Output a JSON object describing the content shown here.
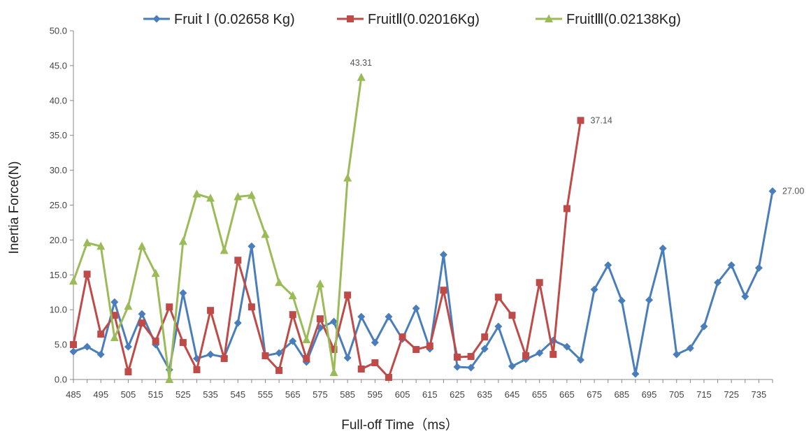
{
  "chart_data": {
    "type": "line",
    "xlabel": "Full-off Time（ms）",
    "ylabel": "Inertia Force(N)",
    "xlim": [
      485,
      740
    ],
    "ylim": [
      0,
      50
    ],
    "grid": false,
    "legend_position": "top",
    "y_ticks": [
      "0.0",
      "5.0",
      "10.0",
      "15.0",
      "20.0",
      "25.0",
      "30.0",
      "35.0",
      "40.0",
      "45.0",
      "50.0"
    ],
    "x_ticks": [
      "485",
      "495",
      "505",
      "515",
      "525",
      "535",
      "545",
      "555",
      "565",
      "575",
      "585",
      "595",
      "605",
      "615",
      "625",
      "635",
      "645",
      "655",
      "665",
      "675",
      "685",
      "695",
      "705",
      "715",
      "725",
      "735"
    ],
    "series": [
      {
        "name": "Fruit Ⅰ (0.02658 Kg)",
        "color": "#4A7EBB",
        "marker": "diamond",
        "x": [
          485,
          490,
          495,
          500,
          505,
          510,
          515,
          520,
          525,
          530,
          535,
          540,
          545,
          550,
          555,
          560,
          565,
          570,
          575,
          580,
          585,
          590,
          595,
          600,
          605,
          610,
          615,
          620,
          625,
          630,
          635,
          640,
          645,
          650,
          655,
          660,
          665,
          670,
          675,
          680,
          685,
          690,
          695,
          700,
          705,
          710,
          715,
          720,
          725,
          730,
          735,
          740
        ],
        "values": [
          4.0,
          4.7,
          3.6,
          11.1,
          4.7,
          9.4,
          5.0,
          1.4,
          12.4,
          3.0,
          3.6,
          3.2,
          8.1,
          19.1,
          3.4,
          3.8,
          5.5,
          2.5,
          7.4,
          8.3,
          3.1,
          9.0,
          5.3,
          9.0,
          5.8,
          10.2,
          4.4,
          17.9,
          1.8,
          1.7,
          4.4,
          7.6,
          1.9,
          2.9,
          3.8,
          5.6,
          4.7,
          2.8,
          12.9,
          16.4,
          11.3,
          0.8,
          11.4,
          18.8,
          3.6,
          4.5,
          7.6,
          13.9,
          16.4,
          11.9,
          16.0,
          27.0
        ],
        "end_label": "27.00"
      },
      {
        "name": "FruitⅡ(0.02016Kg)",
        "color": "#BE4B48",
        "marker": "square",
        "x": [
          485,
          490,
          495,
          500,
          505,
          510,
          515,
          520,
          525,
          530,
          535,
          540,
          545,
          550,
          555,
          560,
          565,
          570,
          575,
          580,
          585,
          590,
          595,
          600,
          605,
          610,
          615,
          620,
          625,
          630,
          635,
          640,
          645,
          650,
          655,
          660,
          665,
          670
        ],
        "values": [
          5.0,
          15.1,
          6.5,
          9.2,
          1.1,
          8.1,
          5.5,
          10.4,
          5.3,
          1.4,
          9.9,
          3.0,
          17.1,
          10.4,
          3.4,
          1.3,
          9.3,
          3.0,
          8.7,
          4.3,
          12.1,
          1.5,
          2.4,
          0.3,
          6.1,
          4.3,
          4.8,
          12.8,
          3.2,
          3.3,
          6.1,
          11.8,
          9.2,
          3.4,
          13.9,
          3.6,
          24.5,
          37.14
        ],
        "end_label": "37.14"
      },
      {
        "name": "FruitⅢ(0.02138Kg)",
        "color": "#9BBB59",
        "marker": "triangle",
        "x": [
          485,
          490,
          495,
          500,
          505,
          510,
          515,
          520,
          525,
          530,
          535,
          540,
          545,
          550,
          555,
          560,
          565,
          570,
          575,
          580,
          585,
          590
        ],
        "values": [
          14.1,
          19.6,
          19.1,
          6.0,
          10.5,
          19.1,
          15.2,
          0.0,
          19.8,
          26.6,
          26.0,
          18.5,
          26.2,
          26.4,
          20.8,
          13.9,
          12.0,
          5.7,
          13.7,
          1.0,
          28.9,
          43.31
        ],
        "end_label": "43.31"
      }
    ]
  }
}
